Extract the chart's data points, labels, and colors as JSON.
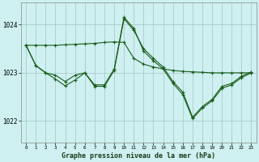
{
  "background_color": "#cef0f0",
  "grid_color": "#aacccc",
  "line_color": "#1a5c1a",
  "title": "Graphe pression niveau de la mer (hPa)",
  "ylim": [
    1021.55,
    1024.45
  ],
  "xlim": [
    -0.5,
    23.5
  ],
  "yticks": [
    1022,
    1023,
    1024
  ],
  "xticks": [
    0,
    1,
    2,
    3,
    4,
    5,
    6,
    7,
    8,
    9,
    10,
    11,
    12,
    13,
    14,
    15,
    16,
    17,
    18,
    19,
    20,
    21,
    22,
    23
  ],
  "series1_x": [
    0,
    1,
    2,
    3,
    4,
    5,
    6,
    7,
    8,
    9,
    10,
    11,
    12,
    13,
    14,
    15,
    16,
    17,
    18,
    19,
    20,
    21,
    22,
    23
  ],
  "series1_y": [
    1023.57,
    1023.57,
    1023.57,
    1023.57,
    1023.58,
    1023.59,
    1023.6,
    1023.61,
    1023.63,
    1023.64,
    1023.63,
    1023.3,
    1023.18,
    1023.12,
    1023.08,
    1023.05,
    1023.03,
    1023.02,
    1023.01,
    1023.0,
    1023.0,
    1023.0,
    1023.0,
    1023.0
  ],
  "series2_x": [
    0,
    1,
    2,
    3,
    4,
    5,
    6,
    7,
    8,
    9,
    10,
    11,
    12,
    13,
    14,
    15,
    16,
    17,
    18,
    19,
    20,
    21,
    22,
    23
  ],
  "series2_y": [
    1023.57,
    1023.15,
    1023.0,
    1022.87,
    1022.73,
    1022.85,
    1023.0,
    1022.72,
    1022.72,
    1023.05,
    1024.12,
    1023.88,
    1023.5,
    1023.3,
    1023.12,
    1022.82,
    1022.6,
    1022.08,
    1022.3,
    1022.45,
    1022.72,
    1022.78,
    1022.93,
    1023.02
  ],
  "series3_x": [
    0,
    1,
    2,
    3,
    4,
    5,
    6,
    7,
    8,
    9,
    10,
    11,
    12,
    13,
    14,
    15,
    16,
    17,
    18,
    19,
    20,
    21,
    22,
    23
  ],
  "series3_y": [
    1023.57,
    1023.15,
    1023.0,
    1022.95,
    1022.82,
    1022.95,
    1023.0,
    1022.75,
    1022.75,
    1023.08,
    1024.15,
    1023.92,
    1023.45,
    1023.25,
    1023.08,
    1022.78,
    1022.55,
    1022.05,
    1022.27,
    1022.42,
    1022.68,
    1022.75,
    1022.9,
    1023.0
  ]
}
